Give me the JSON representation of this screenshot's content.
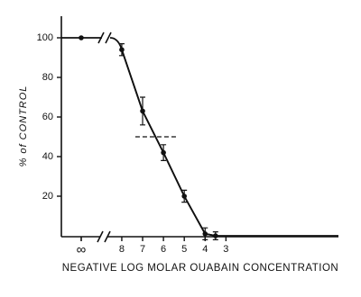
{
  "chart_data": {
    "type": "line",
    "x_label": "NEGATIVE LOG MOLAR OUABAIN CONCENTRATION",
    "y_label": "% of CONTROL",
    "control_point": {
      "x_label": "∞",
      "value": 100
    },
    "x": [
      8,
      7,
      6,
      5,
      4,
      3.5
    ],
    "values": [
      94,
      63,
      42,
      20,
      1,
      0
    ],
    "errors": [
      3,
      7,
      4,
      3,
      3,
      2
    ],
    "color": "#111111",
    "xlim": [
      10.9,
      -2.4
    ],
    "xticks": [
      8,
      7,
      6,
      5,
      4,
      3
    ],
    "ylim": [
      0,
      110
    ],
    "yticks": [
      20,
      40,
      60,
      80,
      100
    ],
    "reference_line": {
      "y": 50,
      "x": [
        7.35,
        5.3
      ]
    }
  }
}
